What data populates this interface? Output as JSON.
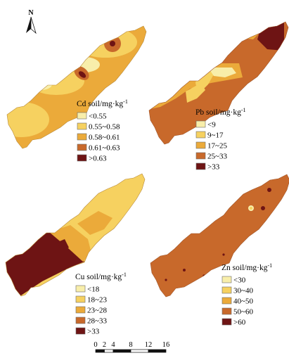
{
  "north_label": "N",
  "scale_bar": {
    "labels": [
      "0",
      "2",
      "4",
      "8",
      "12",
      "16"
    ],
    "stops": [
      0,
      2,
      4,
      8,
      12,
      16
    ]
  },
  "maps": [
    {
      "id": "cd",
      "title_main": "Cd soil/mg",
      "title_suffix": "·kg",
      "title_exponent": "-1",
      "classes": [
        {
          "label": "<0.55",
          "color": "#f8eeaa"
        },
        {
          "label": "0.55~0.58",
          "color": "#f6d160"
        },
        {
          "label": "0.58~0.61",
          "color": "#ebaa3a"
        },
        {
          "label": "0.61~0.63",
          "color": "#c8692b"
        },
        {
          "label": ">0.63",
          "color": "#6e1414"
        }
      ]
    },
    {
      "id": "pb",
      "title_main": "Pb soil/mg",
      "title_suffix": "·kg",
      "title_exponent": "-1",
      "classes": [
        {
          "label": "<9",
          "color": "#f8eeaa"
        },
        {
          "label": "9~17",
          "color": "#f6d160"
        },
        {
          "label": "17~25",
          "color": "#ebaa3a"
        },
        {
          "label": "25~33",
          "color": "#c8692b"
        },
        {
          "label": ">33",
          "color": "#6e1414"
        }
      ]
    },
    {
      "id": "cu",
      "title_main": "Cu soil/mg",
      "title_suffix": "·kg",
      "title_exponent": "-1",
      "classes": [
        {
          "label": "<18",
          "color": "#f8eeaa"
        },
        {
          "label": "18~23",
          "color": "#f6d160"
        },
        {
          "label": "23~28",
          "color": "#ebaa3a"
        },
        {
          "label": "28~33",
          "color": "#c8692b"
        },
        {
          "label": ">33",
          "color": "#6e1414"
        }
      ]
    },
    {
      "id": "zn",
      "title_main": "Zn soil/mg",
      "title_suffix": "·kg",
      "title_exponent": "-1",
      "classes": [
        {
          "label": "<30",
          "color": "#f8eeaa"
        },
        {
          "label": "30~40",
          "color": "#f6d160"
        },
        {
          "label": "40~50",
          "color": "#ebaa3a"
        },
        {
          "label": "50~60",
          "color": "#c8692b"
        },
        {
          "label": ">60",
          "color": "#6e1414"
        }
      ]
    }
  ]
}
